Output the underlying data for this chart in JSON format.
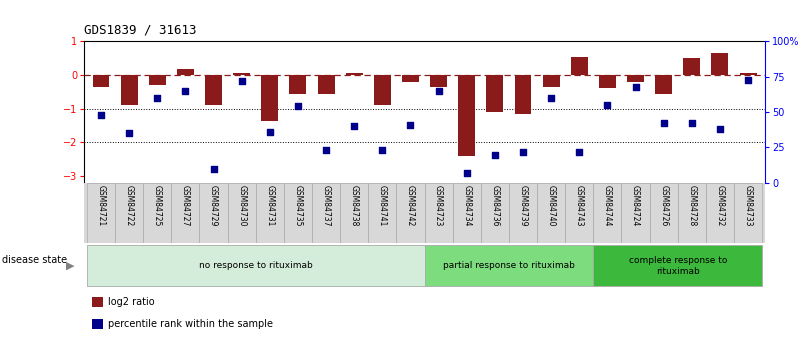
{
  "title": "GDS1839 / 31613",
  "samples": [
    "GSM84721",
    "GSM84722",
    "GSM84725",
    "GSM84727",
    "GSM84729",
    "GSM84730",
    "GSM84731",
    "GSM84735",
    "GSM84737",
    "GSM84738",
    "GSM84741",
    "GSM84742",
    "GSM84723",
    "GSM84734",
    "GSM84736",
    "GSM84739",
    "GSM84740",
    "GSM84743",
    "GSM84744",
    "GSM84724",
    "GSM84726",
    "GSM84728",
    "GSM84732",
    "GSM84733"
  ],
  "log2_ratio": [
    -0.35,
    -0.9,
    -0.28,
    0.18,
    -0.9,
    0.07,
    -1.35,
    -0.55,
    -0.55,
    0.05,
    -0.9,
    -0.2,
    -0.35,
    -2.4,
    -1.1,
    -1.15,
    -0.35,
    0.55,
    -0.38,
    -0.22,
    -0.55,
    0.5,
    0.65,
    0.05
  ],
  "percentile_rank": [
    48,
    35,
    60,
    65,
    10,
    72,
    36,
    54,
    23,
    40,
    23,
    41,
    65,
    7,
    20,
    22,
    60,
    22,
    55,
    68,
    42,
    42,
    38,
    73
  ],
  "groups": [
    {
      "label": "no response to rituximab",
      "start": 0,
      "end": 12,
      "color": "#d4edda",
      "edge": "#aaa"
    },
    {
      "label": "partial response to rituximab",
      "start": 12,
      "end": 18,
      "color": "#7ddc7d",
      "edge": "#aaa"
    },
    {
      "label": "complete response to\nrituximab",
      "start": 18,
      "end": 24,
      "color": "#3cb83c",
      "edge": "#aaa"
    }
  ],
  "bar_color": "#8b1a1a",
  "dot_color": "#00008b",
  "ylim_left": [
    -3.2,
    1.0
  ],
  "ylim_right": [
    0,
    100
  ],
  "right_ticks": [
    0,
    25,
    50,
    75,
    100
  ],
  "right_tick_labels": [
    "0",
    "25",
    "50",
    "75",
    "100%"
  ],
  "left_ticks": [
    -3,
    -2,
    -1,
    0,
    1
  ],
  "hlines_dotted": [
    -1,
    -2
  ],
  "hline_zero": 0,
  "disease_state_label": "disease state",
  "legend_items": [
    {
      "label": "log2 ratio",
      "color": "#8b1a1a"
    },
    {
      "label": "percentile rank within the sample",
      "color": "#00008b"
    }
  ],
  "tick_bg": "#d8d8d8",
  "tick_border": "#aaaaaa"
}
